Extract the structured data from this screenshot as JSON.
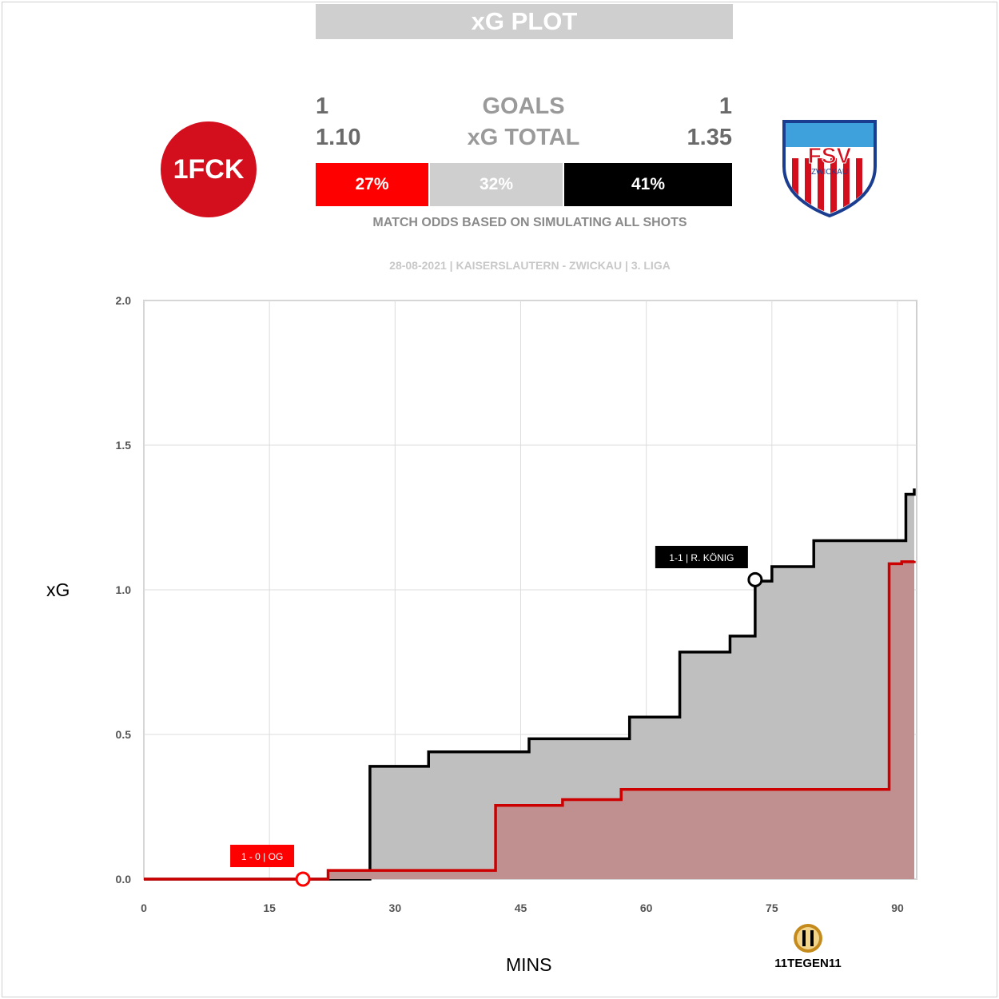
{
  "header": {
    "title": "xG PLOT"
  },
  "home": {
    "goals": "1",
    "xg_total": "1.10",
    "win_pct": "27%",
    "color": "#ff0000"
  },
  "away": {
    "goals": "1",
    "xg_total": "1.35",
    "win_pct": "41%",
    "color": "#000000"
  },
  "labels": {
    "goals": "GOALS",
    "xg_total": "xG TOTAL",
    "draw_pct": "32%",
    "odds_note": "MATCH ODDS BASED ON SIMULATING ALL SHOTS",
    "match_info": "28-08-2021 | KAISERSLAUTERN - ZWICKAU | 3. LIGA"
  },
  "home_logo": {
    "text": "1FCK"
  },
  "away_logo": {
    "text": "FSV",
    "subtext": "ZWICKAU"
  },
  "brand": {
    "text": "11TEGEN11"
  },
  "chart_data": {
    "type": "line",
    "xlabel": "MINS",
    "ylabel": "xG",
    "xlim": [
      0,
      92
    ],
    "ylim": [
      0,
      2
    ],
    "xticks": [
      "0",
      "15",
      "30",
      "45",
      "60",
      "75",
      "90"
    ],
    "yticks": [
      "0.0",
      "0.5",
      "1.0",
      "1.5",
      "2.0"
    ],
    "grid": true,
    "series": [
      {
        "color": "#cc0000",
        "fill": "#c08f8f",
        "x": [
          0,
          22,
          42,
          50,
          57,
          89,
          90.5,
          92
        ],
        "y": [
          0,
          0.03,
          0.255,
          0.275,
          0.31,
          1.09,
          1.097,
          1.1
        ]
      },
      {
        "color": "#000000",
        "fill": "#bfbfbf",
        "x": [
          0,
          27,
          34,
          46,
          58,
          64,
          70,
          73,
          75,
          80,
          91,
          92
        ],
        "y": [
          0,
          0.39,
          0.44,
          0.485,
          0.56,
          0.785,
          0.84,
          1.03,
          1.08,
          1.17,
          1.33,
          1.35
        ]
      }
    ],
    "annotations": [
      {
        "text": "1 - 0  |  OG",
        "x": 19,
        "y": 0,
        "color": "#ff0000"
      },
      {
        "text": "1-1 | R. KÖNIG",
        "x": 73,
        "y": 1.035,
        "color": "#000000"
      }
    ]
  }
}
